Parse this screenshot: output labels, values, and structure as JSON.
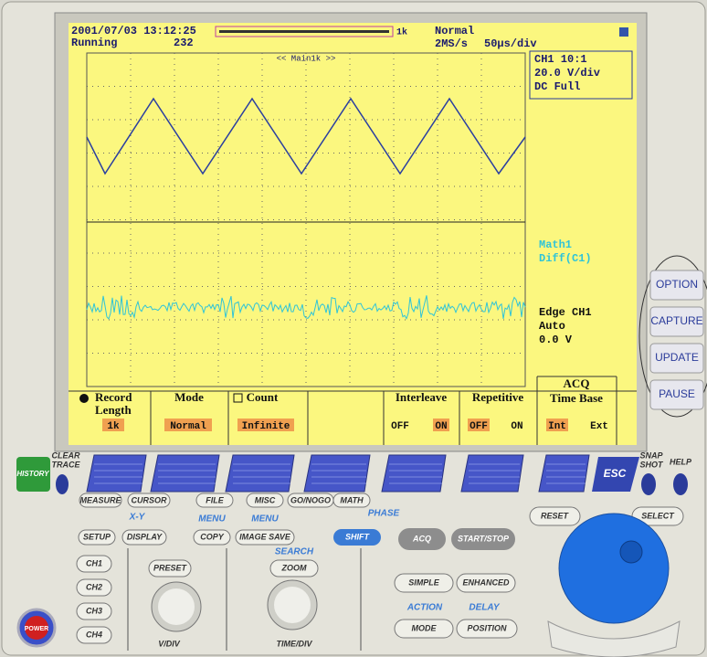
{
  "screen": {
    "datetime": "2001/07/03 13:12:25",
    "state": "Running",
    "count": "232",
    "record": "1k",
    "trigger_mode": "Normal",
    "sample_rate": "2MS/s",
    "timebase": "50µs/div",
    "zoom_label": "<< Main1k >>",
    "ch1": [
      "CH1 10:1",
      "20.0 V/div",
      "DC   Full"
    ],
    "math": [
      "Math1",
      "Diff(C1)"
    ],
    "trigger": [
      "Edge CH1",
      "Auto",
      "0.0 V"
    ]
  },
  "menu": {
    "record_length": {
      "label": [
        "Record",
        "Length"
      ],
      "value": "1k"
    },
    "mode": {
      "label": "Mode",
      "value": "Normal"
    },
    "count": {
      "label": "Count",
      "value": "Infinite"
    },
    "interleave": {
      "label": "Interleave",
      "options": [
        "OFF",
        "ON"
      ]
    },
    "repetitive": {
      "label": "Repetitive",
      "options": [
        "OFF",
        "ON"
      ]
    },
    "acq": {
      "title": "ACQ",
      "label": "Time Base",
      "options": [
        "Int",
        "Ext"
      ]
    }
  },
  "side_buttons": [
    "OPTION",
    "CAPTURE",
    "UPDATE",
    "PAUSE"
  ],
  "panel": {
    "history": "HISTORY",
    "clear_trace": [
      "CLEAR",
      "TRACE"
    ],
    "esc": "ESC",
    "snap_shot": [
      "SNAP",
      "SHOT"
    ],
    "help": "HELP",
    "row1": [
      "MEASURE",
      "CURSOR",
      "FILE",
      "MISC",
      "GO/NOGO",
      "MATH"
    ],
    "xy": "X-Y",
    "setup": "SETUP",
    "display": "DISPLAY",
    "menu1": "MENU",
    "copy": "COPY",
    "menu2": "MENU",
    "image_save": "IMAGE SAVE",
    "phase": "PHASE",
    "shift": "SHIFT",
    "acq": "ACQ",
    "start_stop": "START/STOP",
    "reset": "RESET",
    "select": "SELECT",
    "channels": [
      "CH1",
      "CH2",
      "CH3",
      "CH4"
    ],
    "preset": "PRESET",
    "search": "SEARCH",
    "zoom": "ZOOM",
    "simple": "SIMPLE",
    "enhanced": "ENHANCED",
    "action": "ACTION",
    "delay": "DELAY",
    "mode": "MODE",
    "position": "POSITION",
    "vdiv": "V/DIV",
    "timediv": "TIME/DIV",
    "power": "POWER"
  }
}
